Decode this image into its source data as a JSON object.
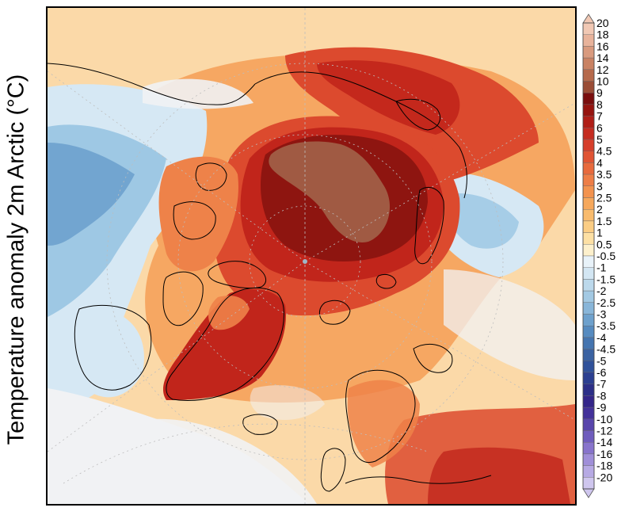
{
  "figure": {
    "ylabel": "Temperature anomaly 2m Arctic (°C)"
  },
  "colorbar": {
    "levels": [
      {
        "label": "20",
        "color": "#f1c8b4"
      },
      {
        "label": "18",
        "color": "#e8b39b"
      },
      {
        "label": "16",
        "color": "#d99a7e"
      },
      {
        "label": "14",
        "color": "#c98263"
      },
      {
        "label": "12",
        "color": "#b66a4c"
      },
      {
        "label": "10",
        "color": "#9a4d36"
      },
      {
        "label": "9",
        "color": "#7a0e0e"
      },
      {
        "label": "8",
        "color": "#96140f"
      },
      {
        "label": "7",
        "color": "#b01e17"
      },
      {
        "label": "6",
        "color": "#c52c20"
      },
      {
        "label": "5",
        "color": "#d63e2a"
      },
      {
        "label": "4.5",
        "color": "#e05434"
      },
      {
        "label": "4",
        "color": "#e86a3d"
      },
      {
        "label": "3.5",
        "color": "#ee7e47"
      },
      {
        "label": "3",
        "color": "#f3934f"
      },
      {
        "label": "2.5",
        "color": "#f6a85c"
      },
      {
        "label": "2",
        "color": "#f9bb6d"
      },
      {
        "label": "1.5",
        "color": "#fbcd84"
      },
      {
        "label": "1",
        "color": "#fde0a4"
      },
      {
        "label": "0.5",
        "color": "#fdf0cc"
      },
      {
        "label": "-0.5",
        "color": "#e8f2f9"
      },
      {
        "label": "-1",
        "color": "#d3e6f3"
      },
      {
        "label": "-1.5",
        "color": "#bcd9ec"
      },
      {
        "label": "-2",
        "color": "#a3c9e3"
      },
      {
        "label": "-2.5",
        "color": "#89b6d9"
      },
      {
        "label": "-3",
        "color": "#6ea1cd"
      },
      {
        "label": "-3.5",
        "color": "#568bc0"
      },
      {
        "label": "-4",
        "color": "#4575b0"
      },
      {
        "label": "-4.5",
        "color": "#3a62a2"
      },
      {
        "label": "-5",
        "color": "#30519a"
      },
      {
        "label": "-6",
        "color": "#2b3f91"
      },
      {
        "label": "-7",
        "color": "#2c2f88"
      },
      {
        "label": "-8",
        "color": "#34268a"
      },
      {
        "label": "-9",
        "color": "#43319a"
      },
      {
        "label": "-10",
        "color": "#5845ac"
      },
      {
        "label": "-12",
        "color": "#6f5cbd"
      },
      {
        "label": "-14",
        "color": "#8874cc"
      },
      {
        "label": "-16",
        "color": "#a08fd9"
      },
      {
        "label": "-18",
        "color": "#b7aae4"
      },
      {
        "label": "-20",
        "color": "#cfc6ee"
      }
    ]
  },
  "map": {
    "colors": {
      "background": "#f7d29a",
      "cold_light": "#d6e8f4",
      "cold_mid": "#9ec8e4",
      "cold_strong": "#5f95c7",
      "neutral": "#f1f2f4",
      "warm_light": "#fbd9a8",
      "warm_mid": "#f6a762",
      "warm_orange": "#ee8249",
      "warm_red": "#dc4a2e",
      "hot_red": "#c1251b",
      "dark_red": "#8e1510",
      "brown": "#a05a43",
      "coast": "#000000",
      "grid": "#bdbdbd"
    }
  }
}
